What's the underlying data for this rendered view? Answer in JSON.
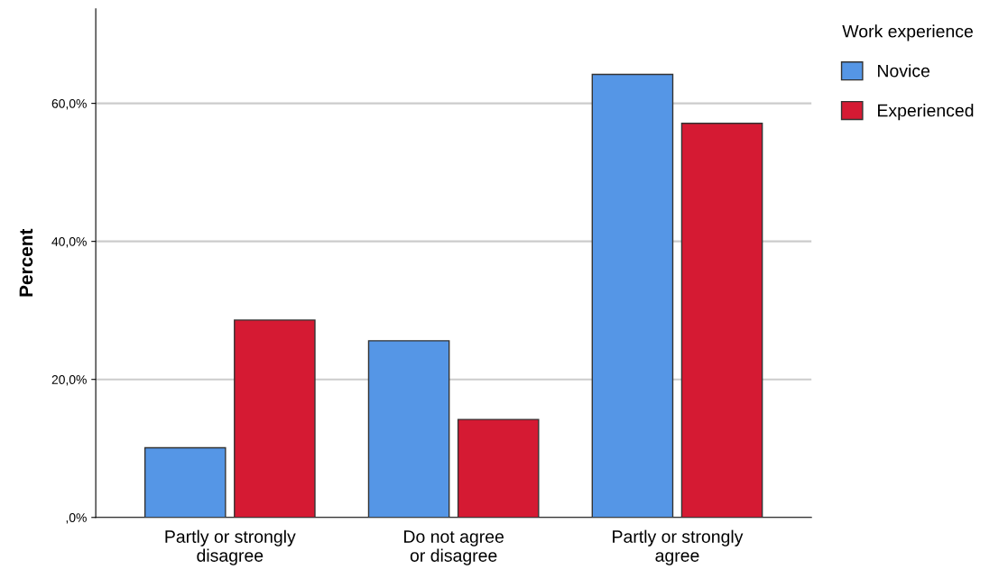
{
  "chart_data": {
    "type": "bar",
    "ylabel": "Percent",
    "legend_title": "Work experience",
    "legend": "top right",
    "categories": [
      "Partly or strongly\ndisagree",
      "Do not agree\nor disagree",
      "Partly or strongly\nagree"
    ],
    "series": [
      {
        "name": "Novice",
        "color": "#5596e6",
        "values": [
          10.1,
          25.6,
          64.2
        ]
      },
      {
        "name": "Experienced",
        "color": "#d51a33",
        "values": [
          28.6,
          14.2,
          57.1
        ]
      }
    ],
    "ylim": [
      0,
      73.7
    ],
    "yticks": [
      {
        "value": 0,
        "label": ",0%"
      },
      {
        "value": 20,
        "label": "20,0%"
      },
      {
        "value": 40,
        "label": "40,0%"
      },
      {
        "value": 60,
        "label": "60,0%"
      }
    ],
    "grid": "y"
  }
}
